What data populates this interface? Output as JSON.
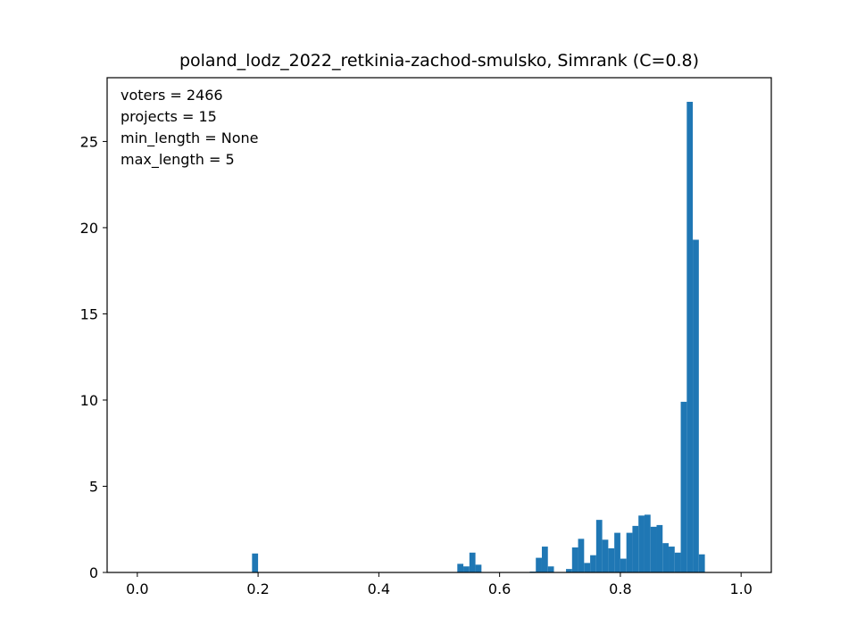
{
  "chart_data": {
    "type": "bar",
    "title": "poland_lodz_2022_retkinia-zachod-smulsko, Simrank (C=0.8)",
    "xlabel": "",
    "ylabel": "",
    "xlim": [
      -0.05,
      1.05
    ],
    "ylim": [
      0,
      28.7
    ],
    "xticks": [
      "0.0",
      "0.2",
      "0.4",
      "0.6",
      "0.8",
      "1.0"
    ],
    "yticks": [
      "0",
      "5",
      "10",
      "15",
      "20",
      "25"
    ],
    "grid": false,
    "bar_color": "#1f77b4",
    "annotations": [
      "voters = 2466",
      "projects = 15",
      "min_length = None",
      "max_length = 5"
    ],
    "bins": [
      {
        "x0": 0.19,
        "x1": 0.2,
        "value": 1.1
      },
      {
        "x0": 0.53,
        "x1": 0.54,
        "value": 0.5
      },
      {
        "x0": 0.54,
        "x1": 0.55,
        "value": 0.35
      },
      {
        "x0": 0.55,
        "x1": 0.56,
        "value": 1.15
      },
      {
        "x0": 0.56,
        "x1": 0.57,
        "value": 0.45
      },
      {
        "x0": 0.65,
        "x1": 0.66,
        "value": 0.05
      },
      {
        "x0": 0.66,
        "x1": 0.67,
        "value": 0.85
      },
      {
        "x0": 0.67,
        "x1": 0.68,
        "value": 1.5
      },
      {
        "x0": 0.68,
        "x1": 0.69,
        "value": 0.35
      },
      {
        "x0": 0.71,
        "x1": 0.72,
        "value": 0.2
      },
      {
        "x0": 0.72,
        "x1": 0.73,
        "value": 1.45
      },
      {
        "x0": 0.73,
        "x1": 0.74,
        "value": 1.95
      },
      {
        "x0": 0.74,
        "x1": 0.75,
        "value": 0.55
      },
      {
        "x0": 0.75,
        "x1": 0.76,
        "value": 1.0
      },
      {
        "x0": 0.76,
        "x1": 0.77,
        "value": 3.05
      },
      {
        "x0": 0.77,
        "x1": 0.78,
        "value": 1.9
      },
      {
        "x0": 0.78,
        "x1": 0.79,
        "value": 1.4
      },
      {
        "x0": 0.79,
        "x1": 0.8,
        "value": 2.3
      },
      {
        "x0": 0.8,
        "x1": 0.81,
        "value": 0.8
      },
      {
        "x0": 0.81,
        "x1": 0.82,
        "value": 2.3
      },
      {
        "x0": 0.82,
        "x1": 0.83,
        "value": 2.7
      },
      {
        "x0": 0.83,
        "x1": 0.84,
        "value": 3.3
      },
      {
        "x0": 0.84,
        "x1": 0.85,
        "value": 3.35
      },
      {
        "x0": 0.85,
        "x1": 0.86,
        "value": 2.65
      },
      {
        "x0": 0.86,
        "x1": 0.87,
        "value": 2.75
      },
      {
        "x0": 0.87,
        "x1": 0.88,
        "value": 1.7
      },
      {
        "x0": 0.88,
        "x1": 0.89,
        "value": 1.5
      },
      {
        "x0": 0.89,
        "x1": 0.9,
        "value": 1.15
      },
      {
        "x0": 0.9,
        "x1": 0.91,
        "value": 9.9
      },
      {
        "x0": 0.91,
        "x1": 0.92,
        "value": 27.3
      },
      {
        "x0": 0.92,
        "x1": 0.93,
        "value": 19.3
      },
      {
        "x0": 0.93,
        "x1": 0.94,
        "value": 1.05
      }
    ]
  }
}
